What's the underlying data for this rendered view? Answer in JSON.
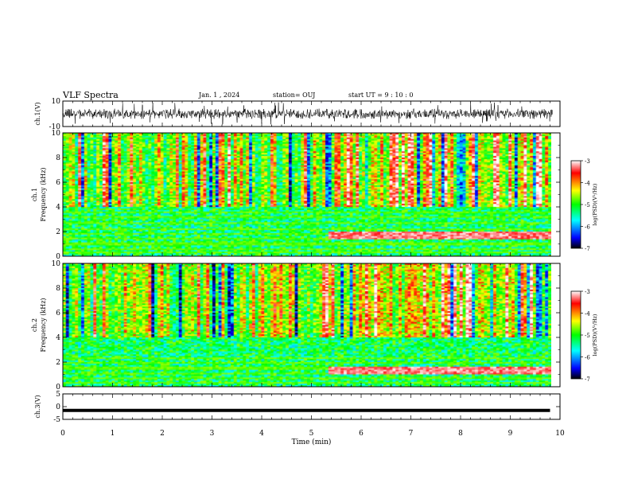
{
  "header": {
    "title": "VLF Spectra",
    "date": "Jan. 1 , 2024",
    "station": "station= OUJ",
    "start": "start UT = 9 : 10 : 0"
  },
  "chart_data": [
    {
      "type": "line",
      "panel": "ch1-waveform",
      "ylabel": "ch.1(V)",
      "ylim": [
        -10,
        10
      ],
      "yticks": [
        "10",
        "-10"
      ],
      "xlim": [
        0,
        10
      ],
      "description_values": {
        "baseline_v": 0,
        "typical_amplitude_v": [
          -4,
          4
        ],
        "max_spike_v": 9
      }
    },
    {
      "type": "heatmap",
      "panel": "ch1-spectrogram",
      "ylabel": "ch.1 Frequency (kHz)",
      "ylim": [
        0,
        10
      ],
      "yticks": [
        "0",
        "2",
        "4",
        "6",
        "8",
        "10"
      ],
      "xlim": [
        0,
        9.8
      ],
      "colorbar": {
        "label": "log(PSD)(V²/Hz)",
        "range": [
          -7,
          -3
        ],
        "ticks": [
          "-3",
          "-4",
          "-5",
          "-6",
          "-7"
        ]
      },
      "features": {
        "emission_band_khz": [
          1.4,
          2.0
        ],
        "band_start_min": 5.3,
        "low_freq_lines_khz": [
          0.3,
          0.6,
          1.0,
          1.4,
          1.8,
          2.2,
          2.7,
          3.2,
          3.6
        ]
      }
    },
    {
      "type": "heatmap",
      "panel": "ch2-spectrogram",
      "ylabel": "ch.2 Frequency (kHz)",
      "ylim": [
        0,
        10
      ],
      "yticks": [
        "0",
        "2",
        "4",
        "6",
        "8",
        "10"
      ],
      "xlim": [
        0,
        9.8
      ],
      "colorbar": {
        "label": "log(PSD)(V²/Hz)",
        "range": [
          -7,
          -3
        ],
        "ticks": [
          "-3",
          "-4",
          "-5",
          "-6",
          "-7"
        ]
      },
      "features": {
        "emission_band_khz": [
          1.0,
          1.6
        ],
        "band_start_min": 5.3,
        "low_freq_lines_khz": [
          0.3,
          0.7,
          1.1,
          1.5,
          1.9,
          2.3
        ]
      }
    },
    {
      "type": "line",
      "panel": "ch3-waveform",
      "ylabel": "ch.3(V)",
      "ylim": [
        -5,
        5
      ],
      "yticks": [
        "5",
        "0",
        "-5"
      ],
      "xlim": [
        0,
        9.8
      ],
      "description_values": {
        "level_v": -1.5
      }
    }
  ],
  "xaxis": {
    "label": "Time (min)",
    "ticks": [
      "0",
      "1",
      "2",
      "3",
      "4",
      "5",
      "6",
      "7",
      "8",
      "9",
      "10"
    ]
  },
  "colors": {
    "axis": "#000000",
    "colormap": [
      "#000000",
      "#0000ff",
      "#00ffff",
      "#00ff00",
      "#ffff00",
      "#ff0000",
      "#ffffff"
    ]
  }
}
